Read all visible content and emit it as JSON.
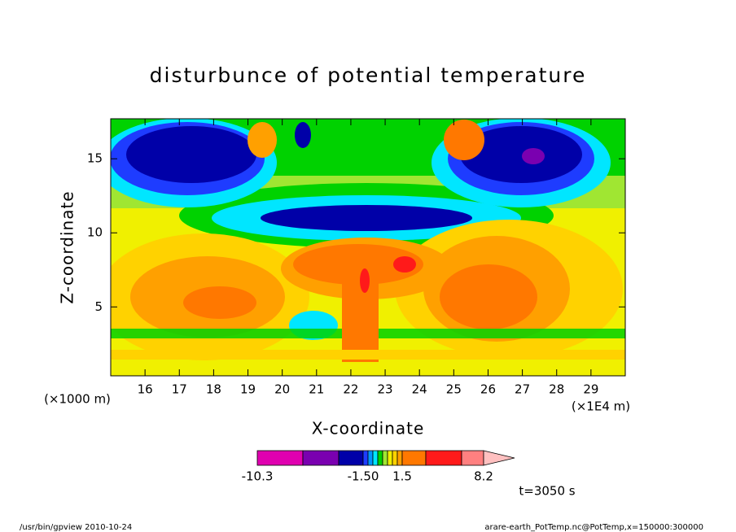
{
  "chart_data": {
    "type": "contour",
    "title": "disturbunce of potential temperature",
    "xlabel": "X-coordinate",
    "ylabel": "Z-coordinate",
    "xunit": "(×1E4 m)",
    "yunit": "(×1000 m)",
    "xlim": [
      15,
      30
    ],
    "ylim": [
      0.35,
      17.7
    ],
    "xticks": [
      16,
      17,
      18,
      19,
      20,
      21,
      22,
      23,
      24,
      25,
      26,
      27,
      28,
      29
    ],
    "yticks": [
      5,
      10,
      15
    ],
    "colorbar": {
      "colors": [
        "#e000b0",
        "#7a00b0",
        "#0000a8",
        "#1e3cff",
        "#0096ff",
        "#00e6ff",
        "#00d200",
        "#a0e632",
        "#f0f000",
        "#ffd200",
        "#ffa000",
        "#ff7800",
        "#ff1a1a",
        "#ff8080"
      ],
      "extend_color": "#ffc0c0",
      "ticks": [
        -10.3,
        {
          "value": -1.5,
          "label": "-1.50"
        },
        1.5,
        8.2
      ]
    },
    "annotation": "t=3050 s",
    "footer_left": "/usr/bin/gpview   2010-10-24",
    "footer_right": "arare-earth_PotTemp.nc@PotTemp,x=150000:300000"
  }
}
